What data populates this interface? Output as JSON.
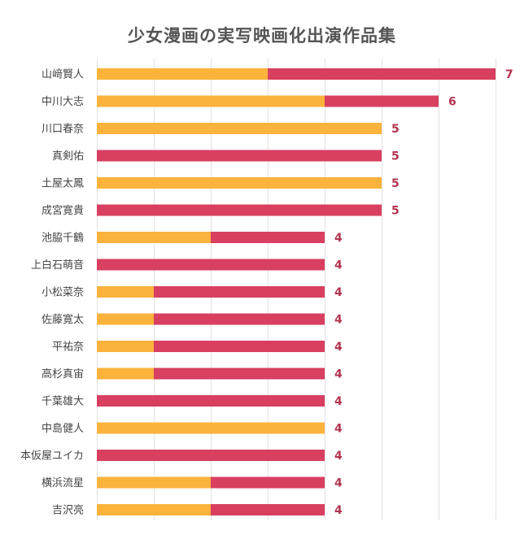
{
  "colors": {
    "segment_a": "#fbb33c",
    "segment_b": "#d83f60",
    "grid": "#e2e2e2",
    "value_label": "#b3344f",
    "title": "#555555"
  },
  "chart_data": {
    "type": "bar",
    "orientation": "horizontal",
    "stacked": true,
    "title": "少女漫画の実写映画化出演作品集",
    "xlabel": "",
    "ylabel": "",
    "xlim": [
      0,
      7.5
    ],
    "grid": true,
    "legend": "none",
    "categories": [
      "山﨑賢人",
      "中川大志",
      "川口春奈",
      "真剣佑",
      "土屋太鳳",
      "成宮寛貴",
      "池脇千鶴",
      "上白石萌音",
      "小松菜奈",
      "佐藤寛太",
      "平祐奈",
      "高杉真宙",
      "千葉雄大",
      "中島健人",
      "本仮屋ユイカ",
      "横浜流星",
      "吉沢亮"
    ],
    "series": [
      {
        "color": "#fbb33c",
        "values": [
          3,
          4,
          5,
          0,
          5,
          0,
          2,
          0,
          1,
          1,
          1,
          1,
          0,
          4,
          0,
          2,
          2
        ]
      },
      {
        "color": "#d83f60",
        "values": [
          4,
          2,
          0,
          5,
          0,
          5,
          2,
          4,
          3,
          3,
          3,
          3,
          4,
          0,
          4,
          2,
          2
        ]
      }
    ],
    "totals": [
      7,
      6,
      5,
      5,
      5,
      5,
      4,
      4,
      4,
      4,
      4,
      4,
      4,
      4,
      4,
      4,
      4
    ]
  }
}
